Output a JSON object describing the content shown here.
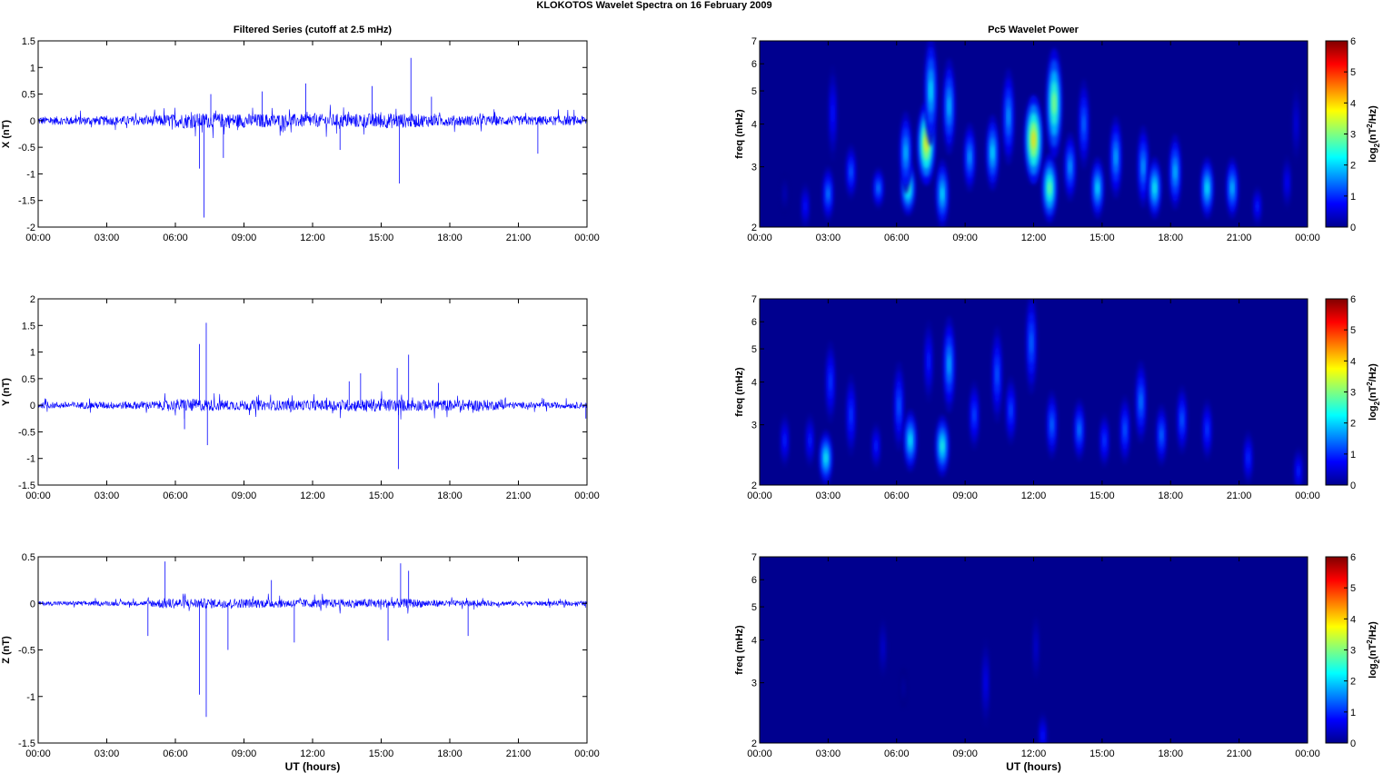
{
  "figure": {
    "title": "KLOKOTOS Wavelet Spectra on 16 February  2009",
    "left_title": "Filtered Series (cutoff at 2.5 mHz)",
    "right_title": "Pc5 Wavelet Power",
    "xlabel": "UT (hours)",
    "colorbar_label": "log2(nT2/Hz)"
  },
  "chart_data": [
    {
      "type": "line",
      "title": "Filtered Series (cutoff at 2.5 mHz)",
      "ylabel": "X (nT)",
      "xlabel": "",
      "x_ticks": [
        "00:00",
        "03:00",
        "06:00",
        "09:00",
        "12:00",
        "15:00",
        "18:00",
        "21:00",
        "00:00"
      ],
      "y_ticks": [
        "1.5",
        "1",
        "0.5",
        "0",
        "-0.5",
        "-1",
        "-1.5",
        "-2"
      ],
      "xlim": [
        0,
        24
      ],
      "ylim": [
        -2,
        1.5
      ],
      "grid": false,
      "color": "#0000ff",
      "baseline_amplitude": 0.07,
      "activity": [
        [
          0,
          0.7
        ],
        [
          4.7,
          0.8
        ],
        [
          6.5,
          1.3
        ],
        [
          9,
          1.2
        ],
        [
          12,
          1.1
        ],
        [
          15.5,
          1.3
        ],
        [
          18,
          0.9
        ],
        [
          21,
          0.8
        ],
        [
          24,
          0.8
        ]
      ],
      "spikes": [
        [
          7.25,
          -1.82
        ],
        [
          7.05,
          -0.9
        ],
        [
          7.55,
          0.5
        ],
        [
          9.8,
          0.55
        ],
        [
          11.7,
          0.7
        ],
        [
          15.8,
          -1.18
        ],
        [
          16.3,
          1.18
        ],
        [
          14.6,
          0.65
        ],
        [
          8.1,
          -0.7
        ],
        [
          21.85,
          -0.62
        ],
        [
          13.2,
          -0.55
        ],
        [
          17.2,
          0.45
        ]
      ]
    },
    {
      "type": "line",
      "title": "",
      "ylabel": "Y (nT)",
      "xlabel": "",
      "x_ticks": [
        "00:00",
        "03:00",
        "06:00",
        "09:00",
        "12:00",
        "15:00",
        "18:00",
        "21:00",
        "00:00"
      ],
      "y_ticks": [
        "2",
        "1.5",
        "1",
        "0.5",
        "0",
        "-0.5",
        "-1",
        "-1.5"
      ],
      "xlim": [
        0,
        24
      ],
      "ylim": [
        -1.5,
        2
      ],
      "grid": false,
      "color": "#0000ff",
      "baseline_amplitude": 0.06,
      "activity": [
        [
          0,
          0.6
        ],
        [
          5,
          0.8
        ],
        [
          6.5,
          1.3
        ],
        [
          8.5,
          1
        ],
        [
          12,
          1
        ],
        [
          15,
          1.3
        ],
        [
          17,
          1.1
        ],
        [
          19.5,
          1.1
        ],
        [
          21,
          0.6
        ],
        [
          24,
          0.6
        ]
      ],
      "spikes": [
        [
          7.35,
          1.55
        ],
        [
          7.05,
          1.15
        ],
        [
          7.4,
          -0.75
        ],
        [
          15.75,
          -1.2
        ],
        [
          16.2,
          0.95
        ],
        [
          15.7,
          0.7
        ],
        [
          6.4,
          -0.45
        ],
        [
          13.6,
          0.45
        ],
        [
          17.5,
          0.42
        ],
        [
          14.1,
          0.6
        ],
        [
          23.95,
          -0.25
        ]
      ]
    },
    {
      "type": "line",
      "title": "",
      "ylabel": "Z (nT)",
      "xlabel": "UT (hours)",
      "x_ticks": [
        "00:00",
        "03:00",
        "06:00",
        "09:00",
        "12:00",
        "15:00",
        "18:00",
        "21:00",
        "00:00"
      ],
      "y_ticks": [
        "0.5",
        "0",
        "-0.5",
        "-1",
        "-1.5"
      ],
      "xlim": [
        0,
        24
      ],
      "ylim": [
        -1.5,
        0.5
      ],
      "grid": false,
      "color": "#0000ff",
      "baseline_amplitude": 0.02,
      "activity": [
        [
          0,
          0.7
        ],
        [
          4.6,
          0.8
        ],
        [
          5.5,
          1.8
        ],
        [
          8,
          1.6
        ],
        [
          12,
          1.4
        ],
        [
          16,
          1.6
        ],
        [
          18,
          1
        ],
        [
          21,
          0.8
        ],
        [
          24,
          0.8
        ]
      ],
      "spikes": [
        [
          7.35,
          -1.22
        ],
        [
          7.05,
          -0.98
        ],
        [
          5.55,
          0.45
        ],
        [
          4.8,
          -0.35
        ],
        [
          15.85,
          0.43
        ],
        [
          16.2,
          0.35
        ],
        [
          15.3,
          -0.4
        ],
        [
          8.3,
          -0.5
        ],
        [
          18.8,
          -0.35
        ],
        [
          10.2,
          0.25
        ],
        [
          11.2,
          -0.42
        ]
      ]
    },
    {
      "type": "heatmap",
      "title": "Pc5 Wavelet Power",
      "ylabel": "freq (mHz)",
      "xlabel": "",
      "y_scale": "log",
      "x_ticks": [
        "00:00",
        "03:00",
        "06:00",
        "09:00",
        "12:00",
        "15:00",
        "18:00",
        "21:00",
        "00:00"
      ],
      "y_ticks": [
        2,
        3,
        4,
        5,
        6,
        7
      ],
      "xlim": [
        0,
        24
      ],
      "ylim": [
        2,
        7
      ],
      "colorbar": {
        "ticks": [
          0,
          1,
          2,
          3,
          4,
          5,
          6
        ],
        "range": [
          0,
          6
        ]
      },
      "blobs": [
        [
          1.1,
          2.5,
          0.35,
          0.6
        ],
        [
          2.0,
          2.3,
          0.9,
          0.7
        ],
        [
          3.0,
          2.5,
          1.6,
          0.8
        ],
        [
          3.2,
          4.3,
          0.9,
          1.4
        ],
        [
          4.0,
          2.9,
          1.4,
          0.8
        ],
        [
          5.2,
          2.6,
          1.6,
          0.6
        ],
        [
          6.5,
          2.6,
          2.8,
          0.8
        ],
        [
          6.4,
          3.3,
          2.0,
          1.2
        ],
        [
          7.3,
          3.5,
          3.9,
          1.2
        ],
        [
          7.5,
          5.0,
          2.2,
          1.6
        ],
        [
          8.0,
          2.5,
          2.2,
          1.0
        ],
        [
          8.3,
          4.5,
          2.0,
          1.4
        ],
        [
          9.2,
          3.2,
          1.8,
          1.0
        ],
        [
          10.2,
          3.3,
          2.2,
          1.1
        ],
        [
          10.9,
          4.2,
          1.8,
          1.4
        ],
        [
          12.0,
          3.6,
          4.0,
          1.3
        ],
        [
          12.7,
          2.6,
          3.0,
          1.0
        ],
        [
          12.9,
          4.6,
          3.2,
          1.6
        ],
        [
          13.6,
          3.0,
          1.8,
          1.0
        ],
        [
          14.2,
          4.0,
          1.5,
          1.3
        ],
        [
          14.8,
          2.6,
          2.2,
          0.9
        ],
        [
          15.6,
          3.2,
          1.9,
          1.2
        ],
        [
          16.8,
          3.0,
          1.8,
          1.2
        ],
        [
          17.3,
          2.6,
          2.4,
          0.9
        ],
        [
          18.2,
          2.9,
          2.0,
          1.1
        ],
        [
          19.6,
          2.6,
          2.3,
          0.9
        ],
        [
          20.7,
          2.6,
          2.0,
          0.9
        ],
        [
          21.8,
          2.3,
          1.0,
          0.6
        ],
        [
          23.1,
          2.7,
          0.8,
          0.8
        ],
        [
          23.5,
          4.0,
          0.6,
          1.2
        ]
      ]
    },
    {
      "type": "heatmap",
      "title": "",
      "ylabel": "freq (mHz)",
      "xlabel": "",
      "y_scale": "log",
      "x_ticks": [
        "00:00",
        "03:00",
        "06:00",
        "09:00",
        "12:00",
        "15:00",
        "18:00",
        "21:00",
        "00:00"
      ],
      "y_ticks": [
        2,
        3,
        4,
        5,
        6,
        7
      ],
      "xlim": [
        0,
        24
      ],
      "ylim": [
        2,
        7
      ],
      "colorbar": {
        "ticks": [
          0,
          1,
          2,
          3,
          4,
          5,
          6
        ],
        "range": [
          0,
          6
        ]
      },
      "blobs": [
        [
          1.1,
          2.7,
          1.0,
          0.8
        ],
        [
          2.2,
          2.7,
          1.0,
          0.8
        ],
        [
          2.9,
          2.4,
          2.4,
          0.8
        ],
        [
          3.1,
          4.0,
          1.2,
          1.2
        ],
        [
          4.0,
          3.2,
          1.2,
          1.2
        ],
        [
          5.1,
          2.6,
          1.0,
          0.7
        ],
        [
          6.1,
          3.4,
          1.4,
          1.3
        ],
        [
          6.6,
          2.7,
          2.3,
          0.9
        ],
        [
          7.4,
          4.6,
          1.0,
          1.2
        ],
        [
          8.0,
          2.6,
          2.5,
          0.9
        ],
        [
          8.3,
          4.5,
          1.9,
          1.4
        ],
        [
          9.4,
          3.2,
          1.3,
          1.0
        ],
        [
          10.4,
          4.2,
          1.4,
          1.4
        ],
        [
          11.0,
          3.3,
          1.3,
          1.0
        ],
        [
          11.9,
          5.2,
          1.5,
          1.5
        ],
        [
          12.8,
          3.0,
          1.5,
          1.0
        ],
        [
          14.0,
          2.9,
          1.6,
          0.9
        ],
        [
          15.1,
          2.7,
          1.2,
          0.8
        ],
        [
          16.0,
          2.9,
          1.4,
          1.0
        ],
        [
          16.7,
          3.5,
          1.6,
          1.2
        ],
        [
          17.6,
          2.8,
          1.5,
          0.9
        ],
        [
          18.5,
          3.1,
          1.4,
          1.0
        ],
        [
          19.6,
          2.9,
          1.2,
          0.9
        ],
        [
          21.4,
          2.4,
          1.1,
          0.8
        ],
        [
          23.6,
          2.2,
          1.0,
          0.7
        ]
      ]
    },
    {
      "type": "heatmap",
      "title": "",
      "ylabel": "freq (mHz)",
      "xlabel": "UT (hours)",
      "y_scale": "log",
      "x_ticks": [
        "00:00",
        "03:00",
        "06:00",
        "09:00",
        "12:00",
        "15:00",
        "18:00",
        "21:00",
        "00:00"
      ],
      "y_ticks": [
        2,
        3,
        4,
        5,
        6,
        7
      ],
      "xlim": [
        0,
        24
      ],
      "ylim": [
        2,
        7
      ],
      "colorbar": {
        "ticks": [
          0,
          1,
          2,
          3,
          4,
          5,
          6
        ],
        "range": [
          0,
          6
        ]
      },
      "blobs": [
        [
          5.4,
          3.8,
          0.5,
          1.0
        ],
        [
          9.9,
          3.0,
          0.7,
          1.3
        ],
        [
          12.1,
          3.8,
          0.5,
          1.1
        ],
        [
          12.4,
          2.1,
          0.9,
          0.7
        ],
        [
          6.3,
          2.9,
          0.2,
          0.6
        ]
      ]
    }
  ]
}
